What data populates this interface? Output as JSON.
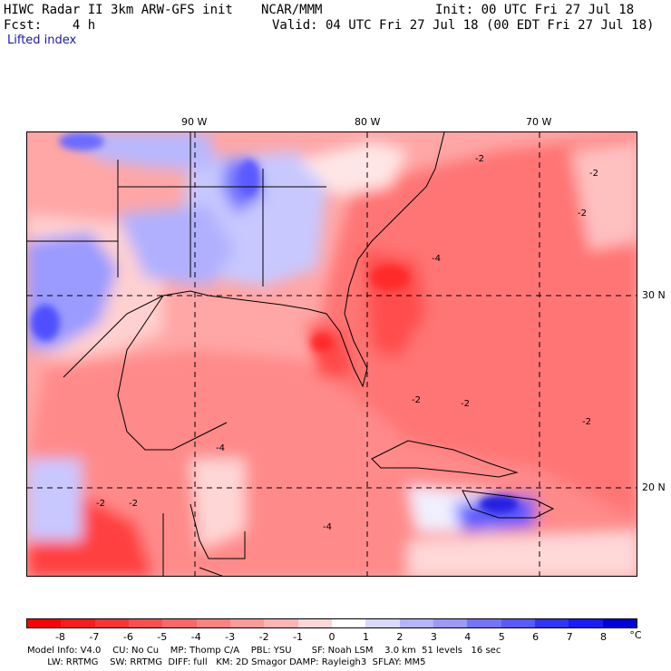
{
  "header": {
    "title_left": "HIWC Radar II 3km ARW-GFS init",
    "title_mid": "NCAR/MMM",
    "init": "Init: 00 UTC Fri 27 Jul 18",
    "fcst": "Fcst:    4 h",
    "valid": "Valid: 04 UTC Fri 27 Jul 18 (00 EDT Fri 27 Jul 18)",
    "field": "Lifted index"
  },
  "map": {
    "lon_ticks": [
      "90 W",
      "80 W",
      "70 W"
    ],
    "lat_ticks": [
      "30 N",
      "20 N"
    ],
    "contour_labels": [
      "-2",
      "-2",
      "-2",
      "-4",
      "-2",
      "-2",
      "-2",
      "-4",
      "-2",
      "-4",
      "-2"
    ]
  },
  "colorbar": {
    "labels": [
      "-8",
      "-7",
      "-6",
      "-5",
      "-4",
      "-3",
      "-2",
      "-1",
      "0",
      "1",
      "2",
      "3",
      "4",
      "5",
      "6",
      "7",
      "8"
    ],
    "unit": "°C",
    "colors": [
      "#ff0000",
      "#ff1a1a",
      "#ff3333",
      "#ff4d4d",
      "#ff6666",
      "#ff8080",
      "#ff9999",
      "#ffb3b3",
      "#ffd6d6",
      "#ffffff",
      "#d9d9ff",
      "#b3b3ff",
      "#9999ff",
      "#7373ff",
      "#5959ff",
      "#3333ff",
      "#1a1aff",
      "#0000dd"
    ]
  },
  "footer": {
    "line1": "Model Info: V4.0    CU: No Cu    MP: Thomp C/A    PBL: YSU       SF: Noah LSM    3.0 km  51 levels   16 sec",
    "line2": "       LW: RRTMG    SW: RRTMG  DIFF: full   KM: 2D Smagor DAMP: Rayleigh3  SFLAY: MM5"
  }
}
